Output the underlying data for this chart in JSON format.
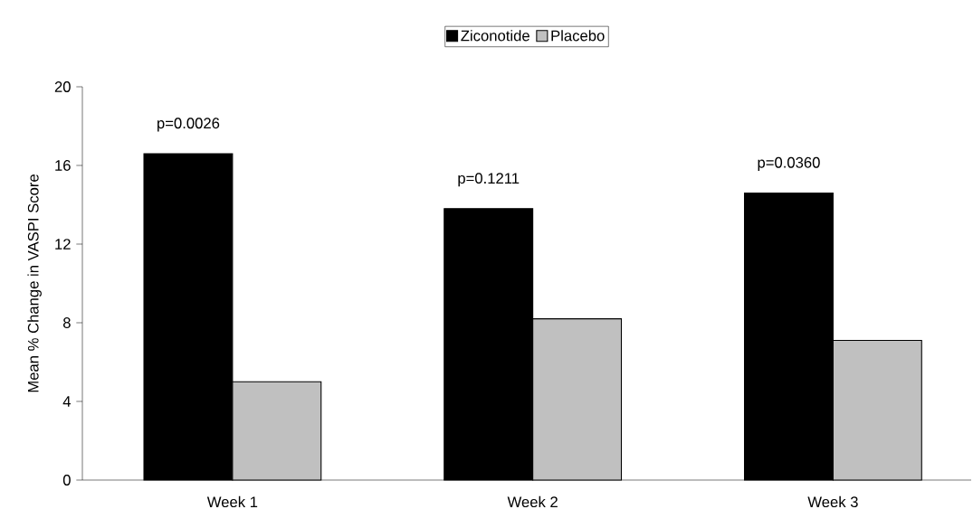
{
  "chart_data": {
    "type": "bar",
    "ylabel": "Mean % Change in VASPI Score",
    "categories": [
      "Week 1",
      "Week 2",
      "Week 3"
    ],
    "series": [
      {
        "name": "Ziconotide",
        "color": "#000000",
        "values": [
          16.6,
          13.8,
          14.6
        ]
      },
      {
        "name": "Placebo",
        "color": "#c0c0c0",
        "values": [
          5.0,
          8.2,
          7.1
        ]
      }
    ],
    "ylim": [
      0,
      20
    ],
    "yticks": [
      0,
      4,
      8,
      12,
      16,
      20
    ],
    "legend": "top",
    "grid": false,
    "annotations": [
      {
        "text": "p=0.0026",
        "x": "Week 1",
        "y": 16.6
      },
      {
        "text": "p=0.1211",
        "x": "Week 2",
        "y": 13.8
      },
      {
        "text": "p=0.0360",
        "x": "Week 3",
        "y": 14.6
      }
    ]
  }
}
